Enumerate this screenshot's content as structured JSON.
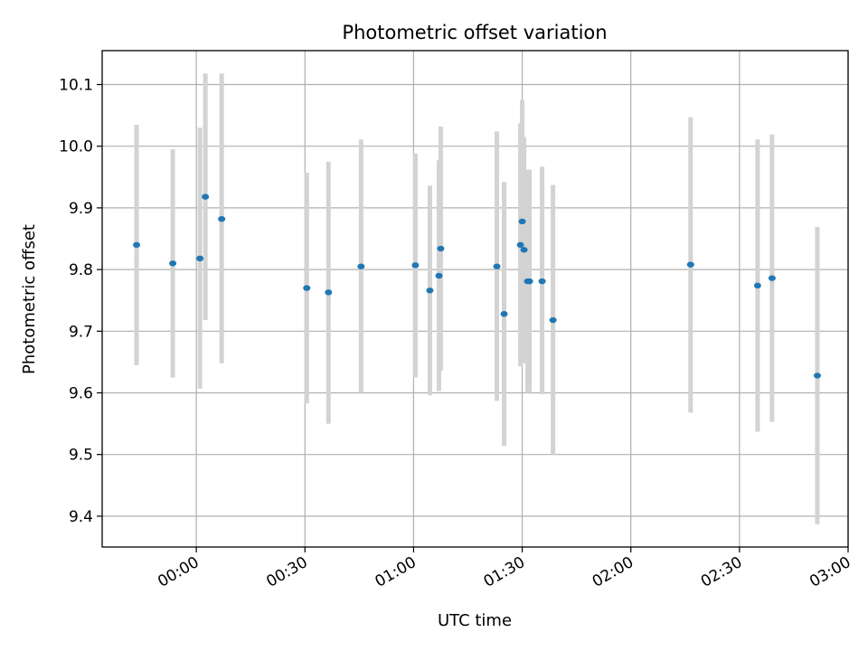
{
  "chart_data": {
    "type": "scatter",
    "title": "Photometric offset variation",
    "xlabel": "UTC time",
    "ylabel": "Photometric offset",
    "x_unit": "UTC",
    "xlim": [
      "-00:26",
      "03:00"
    ],
    "ylim": [
      9.35,
      10.155
    ],
    "grid": true,
    "x_ticks": [
      "00:00",
      "00:30",
      "01:00",
      "01:30",
      "02:00",
      "02:30",
      "03:00"
    ],
    "y_ticks": [
      "9.4",
      "9.5",
      "9.6",
      "9.7",
      "9.8",
      "9.9",
      "10.0",
      "10.1"
    ],
    "colors": {
      "point": "#1f77b4",
      "errorbar": "#d3d3d3",
      "grid": "#b0b0b0"
    },
    "series": [
      {
        "points": [
          {
            "x": "-00:16.5",
            "y": 9.84,
            "lo": 9.645,
            "hi": 10.035
          },
          {
            "x": "-00:06.5",
            "y": 9.81,
            "lo": 9.625,
            "hi": 9.995
          },
          {
            "x": "00:01",
            "y": 9.818,
            "lo": 9.607,
            "hi": 10.03
          },
          {
            "x": "00:02.5",
            "y": 9.918,
            "lo": 9.718,
            "hi": 10.118
          },
          {
            "x": "00:07",
            "y": 9.882,
            "lo": 9.648,
            "hi": 10.118
          },
          {
            "x": "00:30.5",
            "y": 9.77,
            "lo": 9.583,
            "hi": 9.957
          },
          {
            "x": "00:36.5",
            "y": 9.763,
            "lo": 9.55,
            "hi": 9.975
          },
          {
            "x": "00:45.5",
            "y": 9.805,
            "lo": 9.6,
            "hi": 10.011
          },
          {
            "x": "01:00.5",
            "y": 9.807,
            "lo": 9.625,
            "hi": 9.988
          },
          {
            "x": "01:04.5",
            "y": 9.766,
            "lo": 9.596,
            "hi": 9.936
          },
          {
            "x": "01:07",
            "y": 9.79,
            "lo": 9.603,
            "hi": 9.977
          },
          {
            "x": "01:07.5",
            "y": 9.834,
            "lo": 9.636,
            "hi": 10.032
          },
          {
            "x": "01:23",
            "y": 9.805,
            "lo": 9.587,
            "hi": 10.024
          },
          {
            "x": "01:25",
            "y": 9.728,
            "lo": 9.514,
            "hi": 9.942
          },
          {
            "x": "01:29.5",
            "y": 9.84,
            "lo": 9.643,
            "hi": 10.037
          },
          {
            "x": "01:30",
            "y": 9.878,
            "lo": 9.681,
            "hi": 10.075
          },
          {
            "x": "01:30.5",
            "y": 9.832,
            "lo": 9.648,
            "hi": 10.015
          },
          {
            "x": "01:31.5",
            "y": 9.781,
            "lo": 9.6,
            "hi": 9.962
          },
          {
            "x": "01:32",
            "y": 9.781,
            "lo": 9.6,
            "hi": 9.962
          },
          {
            "x": "01:35.5",
            "y": 9.781,
            "lo": 9.598,
            "hi": 9.967
          },
          {
            "x": "01:38.5",
            "y": 9.718,
            "lo": 9.5,
            "hi": 9.937
          },
          {
            "x": "02:16.5",
            "y": 9.808,
            "lo": 9.568,
            "hi": 10.047
          },
          {
            "x": "02:35",
            "y": 9.774,
            "lo": 9.537,
            "hi": 10.011
          },
          {
            "x": "02:39",
            "y": 9.786,
            "lo": 9.553,
            "hi": 10.019
          },
          {
            "x": "02:51.5",
            "y": 9.628,
            "lo": 9.387,
            "hi": 9.869
          }
        ]
      }
    ]
  }
}
